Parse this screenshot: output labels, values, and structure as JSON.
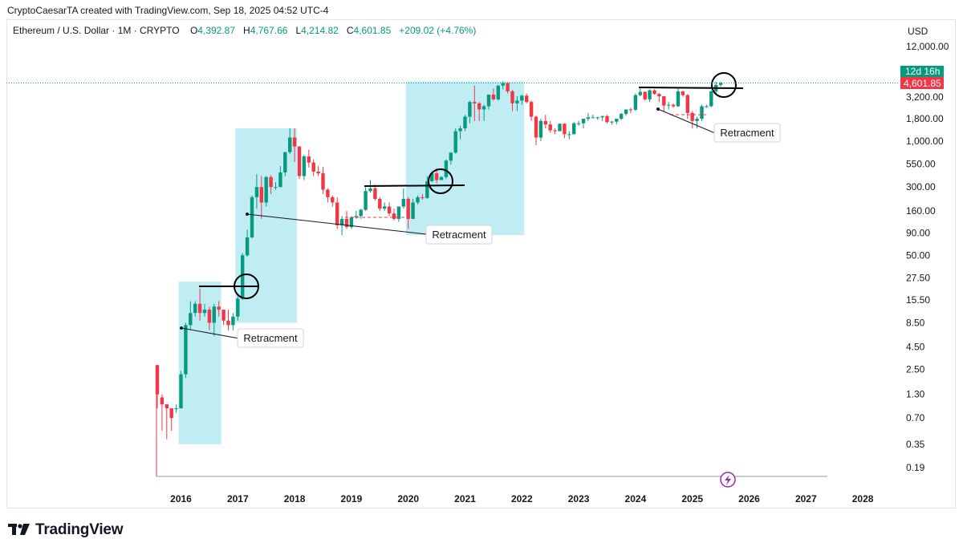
{
  "attribution": "CryptoCaesarTA created with TradingView.com, Sep 18, 2025 04:52 UTC-4",
  "legend": {
    "symbol": "Ethereum / U.S. Dollar · 1M · CRYPTO",
    "open_label": "O",
    "open": "4,392.87",
    "high_label": "H",
    "high": "4,767.66",
    "low_label": "L",
    "low": "4,214.82",
    "close_label": "C",
    "close": "4,601.85",
    "change": "+209.02 (+4.76%)"
  },
  "brand": {
    "name": "TradingView"
  },
  "colors": {
    "up": "#089981",
    "down": "#f23645",
    "highlight": "#bfedf3",
    "price_line": "#089981"
  },
  "chart_data": {
    "type": "candlestick",
    "title": "Ethereum / U.S. Dollar · 1M · CRYPTO",
    "currency": "USD",
    "scale": "log",
    "price_tag": {
      "countdown": "12d 16h",
      "price": "4,601.85",
      "value": 4601.85
    },
    "y_ticks": [
      "12,000.00",
      "3,200.00",
      "1,800.00",
      "1,000.00",
      "550.00",
      "300.00",
      "160.00",
      "90.00",
      "50.00",
      "27.50",
      "15.50",
      "8.50",
      "4.50",
      "2.50",
      "1.30",
      "0.70",
      "0.35",
      "0.19"
    ],
    "y_tick_values": [
      12000,
      3200,
      1800,
      1000,
      550,
      300,
      160,
      90,
      50,
      27.5,
      15.5,
      8.5,
      4.5,
      2.5,
      1.3,
      0.7,
      0.35,
      0.19
    ],
    "x_ticks": [
      "2016",
      "2017",
      "2018",
      "2019",
      "2020",
      "2021",
      "2022",
      "2023",
      "2024",
      "2025",
      "2026",
      "2027",
      "2028"
    ],
    "start": "2015-08",
    "candles": [
      [
        2.8,
        1.3,
        0.9,
        2.8
      ],
      [
        1.2,
        1.0,
        0.5,
        1.3
      ],
      [
        1.0,
        0.9,
        0.4,
        1.0
      ],
      [
        0.9,
        0.7,
        0.5,
        0.9
      ],
      [
        0.9,
        0.9,
        0.8,
        1.0
      ],
      [
        0.9,
        2.2,
        0.9,
        2.4
      ],
      [
        2.2,
        8.0,
        2.0,
        8.5
      ],
      [
        8.0,
        11.0,
        7.0,
        15.0
      ],
      [
        11.0,
        14.0,
        10.0,
        15.0
      ],
      [
        14.0,
        11.0,
        9.0,
        21.0
      ],
      [
        11.0,
        12.0,
        10.0,
        14.0
      ],
      [
        12.0,
        8.5,
        7.0,
        13.0
      ],
      [
        8.5,
        13.0,
        6.0,
        14.0
      ],
      [
        13.0,
        12.0,
        10.0,
        15.0
      ],
      [
        12.0,
        9.0,
        8.0,
        12.0
      ],
      [
        9.0,
        8.0,
        7.0,
        12.0
      ],
      [
        8.0,
        10.0,
        7.0,
        11.0
      ],
      [
        10.0,
        16.0,
        9.0,
        17.0
      ],
      [
        16.0,
        50.0,
        15.5,
        53.0
      ],
      [
        50.0,
        80.0,
        48.0,
        98.0
      ],
      [
        80.0,
        230.0,
        78.0,
        240.0
      ],
      [
        230.0,
        300.0,
        170.0,
        420.0
      ],
      [
        300.0,
        200.0,
        130.0,
        400.0
      ],
      [
        200.0,
        390.0,
        180.0,
        400.0
      ],
      [
        390.0,
        300.0,
        250.0,
        410.0
      ],
      [
        300.0,
        300.0,
        280.0,
        340.0
      ],
      [
        300.0,
        440.0,
        300.0,
        520.0
      ],
      [
        440.0,
        750.0,
        400.0,
        760.0
      ],
      [
        750.0,
        1100.0,
        710.0,
        1400.0
      ],
      [
        1100.0,
        870.0,
        580.0,
        1400.0
      ],
      [
        870.0,
        400.0,
        370.0,
        880.0
      ],
      [
        400.0,
        670.0,
        360.0,
        700.0
      ],
      [
        670.0,
        570.0,
        500.0,
        800.0
      ],
      [
        570.0,
        450.0,
        400.0,
        620.0
      ],
      [
        450.0,
        430.0,
        400.0,
        520.0
      ],
      [
        430.0,
        280.0,
        250.0,
        510.0
      ],
      [
        280.0,
        230.0,
        200.0,
        290.0
      ],
      [
        230.0,
        200.0,
        180.0,
        240.0
      ],
      [
        200.0,
        110.0,
        100.0,
        230.0
      ],
      [
        110.0,
        130.0,
        85.0,
        140.0
      ],
      [
        130.0,
        105.0,
        100.0,
        160.0
      ],
      [
        105.0,
        135.0,
        100.0,
        140.0
      ],
      [
        135.0,
        140.0,
        130.0,
        160.0
      ],
      [
        140.0,
        165.0,
        130.0,
        170.0
      ],
      [
        165.0,
        270.0,
        160.0,
        300.0
      ],
      [
        270.0,
        290.0,
        260.0,
        360.0
      ],
      [
        290.0,
        220.0,
        210.0,
        320.0
      ],
      [
        220.0,
        170.0,
        160.0,
        230.0
      ],
      [
        170.0,
        180.0,
        160.0,
        200.0
      ],
      [
        180.0,
        150.0,
        140.0,
        200.0
      ],
      [
        150.0,
        130.0,
        125.0,
        170.0
      ],
      [
        130.0,
        180.0,
        120.0,
        180.0
      ],
      [
        180.0,
        220.0,
        170.0,
        290.0
      ],
      [
        220.0,
        130.0,
        100.0,
        230.0
      ],
      [
        130.0,
        200.0,
        130.0,
        220.0
      ],
      [
        200.0,
        230.0,
        190.0,
        240.0
      ],
      [
        230.0,
        225.0,
        215.0,
        250.0
      ],
      [
        225.0,
        350.0,
        220.0,
        400.0
      ],
      [
        350.0,
        430.0,
        340.0,
        450.0
      ],
      [
        430.0,
        360.0,
        330.0,
        490.0
      ],
      [
        360.0,
        390.0,
        370.0,
        400.0
      ],
      [
        390.0,
        600.0,
        370.0,
        620.0
      ],
      [
        600.0,
        740.0,
        540.0,
        750.0
      ],
      [
        740.0,
        1300.0,
        720.0,
        1400.0
      ],
      [
        1300.0,
        1400.0,
        1050.0,
        1500.0
      ],
      [
        1400.0,
        1900.0,
        1300.0,
        2000.0
      ],
      [
        1900.0,
        2800.0,
        1600.0,
        2900.0
      ],
      [
        2800.0,
        2700.0,
        1700.0,
        4300.0
      ],
      [
        2700.0,
        2300.0,
        1700.0,
        2800.0
      ],
      [
        2300.0,
        2500.0,
        1700.0,
        2600.0
      ],
      [
        2500.0,
        3400.0,
        2300.0,
        3400.0
      ],
      [
        3400.0,
        3000.0,
        2900.0,
        4000.0
      ],
      [
        3000.0,
        4300.0,
        2900.0,
        4400.0
      ],
      [
        4300.0,
        4600.0,
        3900.0,
        4800.0
      ],
      [
        4600.0,
        3700.0,
        3500.0,
        4700.0
      ],
      [
        3700.0,
        2700.0,
        2200.0,
        3850.0
      ],
      [
        2700.0,
        2900.0,
        2200.0,
        3250.0
      ],
      [
        2900.0,
        3300.0,
        2600.0,
        3400.0
      ],
      [
        3300.0,
        2800.0,
        2700.0,
        3500.0
      ],
      [
        2800.0,
        1900.0,
        1700.0,
        2900.0
      ],
      [
        1900.0,
        1100.0,
        900.0,
        1950.0
      ],
      [
        1100.0,
        1700.0,
        1000.0,
        1800.0
      ],
      [
        1700.0,
        1550.0,
        1400.0,
        2000.0
      ],
      [
        1550.0,
        1330.0,
        1250.0,
        1700.0
      ],
      [
        1330.0,
        1300.0,
        1200.0,
        1400.0
      ],
      [
        1300.0,
        1580.0,
        1300.0,
        1600.0
      ],
      [
        1580.0,
        1200.0,
        1080.0,
        1600.0
      ],
      [
        1200.0,
        1200.0,
        1050.0,
        1300.0
      ],
      [
        1200.0,
        1600.0,
        1200.0,
        1650.0
      ],
      [
        1600.0,
        1600.0,
        1500.0,
        1700.0
      ],
      [
        1600.0,
        1800.0,
        1400.0,
        1800.0
      ],
      [
        1800.0,
        1870.0,
        1700.0,
        2100.0
      ],
      [
        1870.0,
        1870.0,
        1850.0,
        2000.0
      ],
      [
        1870.0,
        1870.0,
        1750.0,
        1900.0
      ],
      [
        1870.0,
        1930.0,
        1700.0,
        1950.0
      ],
      [
        1930.0,
        1650.0,
        1600.0,
        2000.0
      ],
      [
        1650.0,
        1670.0,
        1550.0,
        1700.0
      ],
      [
        1670.0,
        1800.0,
        1550.0,
        1800.0
      ],
      [
        1800.0,
        2050.0,
        1750.0,
        2100.0
      ],
      [
        2050.0,
        2300.0,
        1950.0,
        2300.0
      ],
      [
        2300.0,
        2280.0,
        2100.0,
        2400.0
      ],
      [
        2280.0,
        3350.0,
        2200.0,
        3500.0
      ],
      [
        3350.0,
        3650.0,
        3250.0,
        4000.0
      ],
      [
        3650.0,
        3000.0,
        2900.0,
        3700.0
      ],
      [
        3000.0,
        3800.0,
        2800.0,
        3900.0
      ],
      [
        3800.0,
        3450.0,
        3400.0,
        3900.0
      ],
      [
        3450.0,
        3250.0,
        2800.0,
        3550.0
      ],
      [
        3250.0,
        2550.0,
        2150.0,
        3250.0
      ],
      [
        2550.0,
        2600.0,
        2300.0,
        2800.0
      ],
      [
        2600.0,
        2500.0,
        2400.0,
        2700.0
      ],
      [
        2500.0,
        3700.0,
        2450.0,
        4100.0
      ],
      [
        3700.0,
        3350.0,
        3200.0,
        3700.0
      ],
      [
        3350.0,
        2100.0,
        1800.0,
        3450.0
      ],
      [
        2100.0,
        1700.0,
        1400.0,
        2200.0
      ],
      [
        1700.0,
        1800.0,
        1400.0,
        1900.0
      ],
      [
        1800.0,
        2500.0,
        1700.0,
        2600.0
      ],
      [
        2500.0,
        2500.0,
        2400.0,
        2600.0
      ],
      [
        2500.0,
        3700.0,
        2450.0,
        3800.0
      ],
      [
        3700.0,
        4380.0,
        3450.0,
        4800.0
      ],
      [
        4380.0,
        4600.0,
        4200.0,
        4760.0
      ]
    ],
    "annotations": [
      {
        "type": "highlight_zone",
        "from": "2016-01",
        "to": "2016-09",
        "low": 0.35,
        "high": 25.0
      },
      {
        "type": "highlight_zone",
        "from": "2017-01",
        "to": "2018-01",
        "low": 8.5,
        "high": 1400.0
      },
      {
        "type": "highlight_zone",
        "from": "2020-01",
        "to": "2022-01",
        "low": 85.0,
        "high": 4800.0
      },
      {
        "type": "label",
        "text": "Retracment"
      },
      {
        "type": "label",
        "text": "Retracment"
      },
      {
        "type": "label",
        "text": "Retracment"
      }
    ],
    "annotation_labels": [
      "Retracment",
      "Retracment",
      "Retracment"
    ]
  }
}
